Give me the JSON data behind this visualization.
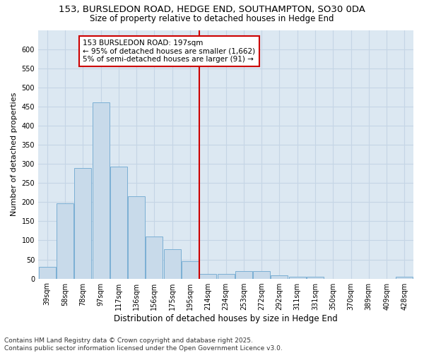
{
  "title_line1": "153, BURSLEDON ROAD, HEDGE END, SOUTHAMPTON, SO30 0DA",
  "title_line2": "Size of property relative to detached houses in Hedge End",
  "xlabel": "Distribution of detached houses by size in Hedge End",
  "ylabel": "Number of detached properties",
  "categories": [
    "39sqm",
    "58sqm",
    "78sqm",
    "97sqm",
    "117sqm",
    "136sqm",
    "156sqm",
    "175sqm",
    "195sqm",
    "214sqm",
    "234sqm",
    "253sqm",
    "272sqm",
    "292sqm",
    "311sqm",
    "331sqm",
    "350sqm",
    "370sqm",
    "389sqm",
    "409sqm",
    "428sqm"
  ],
  "values": [
    30,
    197,
    290,
    460,
    293,
    215,
    110,
    76,
    46,
    13,
    12,
    19,
    19,
    9,
    5,
    5,
    0,
    0,
    0,
    0,
    4
  ],
  "bar_color": "#c8daea",
  "bar_edge_color": "#7bafd4",
  "vline_x_index": 8,
  "vline_color": "#cc0000",
  "annotation_text": "153 BURSLEDON ROAD: 197sqm\n← 95% of detached houses are smaller (1,662)\n5% of semi-detached houses are larger (91) →",
  "annotation_box_color": "#cc0000",
  "annotation_fill": "#ffffff",
  "ylim": [
    0,
    650
  ],
  "yticks": [
    0,
    50,
    100,
    150,
    200,
    250,
    300,
    350,
    400,
    450,
    500,
    550,
    600
  ],
  "grid_color": "#c5d5e5",
  "background_color": "#dce8f2",
  "footer_line1": "Contains HM Land Registry data © Crown copyright and database right 2025.",
  "footer_line2": "Contains public sector information licensed under the Open Government Licence v3.0.",
  "title_fontsize": 9.5,
  "subtitle_fontsize": 8.5,
  "xlabel_fontsize": 8.5,
  "ylabel_fontsize": 8,
  "tick_fontsize": 7,
  "annotation_fontsize": 7.5,
  "footer_fontsize": 6.5
}
